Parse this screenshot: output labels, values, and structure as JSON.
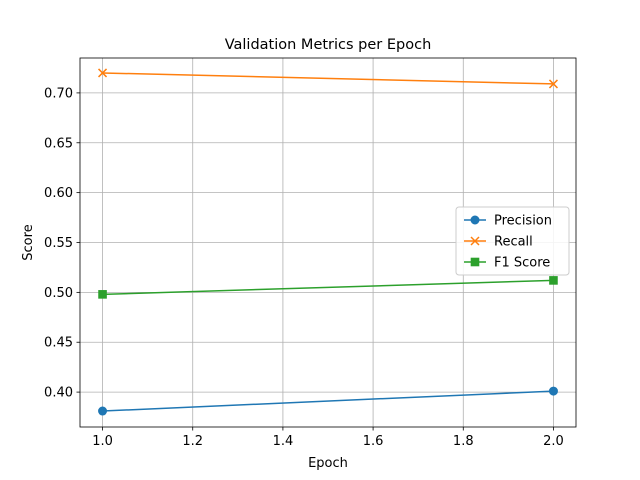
{
  "chart_data": {
    "type": "line",
    "title": "Validation Metrics per Epoch",
    "xlabel": "Epoch",
    "ylabel": "Score",
    "x": [
      1.0,
      2.0
    ],
    "xlim": [
      0.95,
      2.05
    ],
    "ylim": [
      0.365,
      0.735
    ],
    "xticks": [
      1.0,
      1.2,
      1.4,
      1.6,
      1.8,
      2.0
    ],
    "xtick_labels": [
      "1.0",
      "1.2",
      "1.4",
      "1.6",
      "1.8",
      "2.0"
    ],
    "yticks": [
      0.4,
      0.45,
      0.5,
      0.55,
      0.6,
      0.65,
      0.7
    ],
    "ytick_labels": [
      "0.40",
      "0.45",
      "0.50",
      "0.55",
      "0.60",
      "0.65",
      "0.70"
    ],
    "grid": true,
    "legend_position": "center-right",
    "series": [
      {
        "name": "Precision",
        "values": [
          0.381,
          0.401
        ],
        "color": "#1f77b4",
        "marker": "circle"
      },
      {
        "name": "Recall",
        "values": [
          0.72,
          0.709
        ],
        "color": "#ff7f0e",
        "marker": "x"
      },
      {
        "name": "F1 Score",
        "values": [
          0.498,
          0.512
        ],
        "color": "#2ca02c",
        "marker": "square"
      }
    ]
  }
}
